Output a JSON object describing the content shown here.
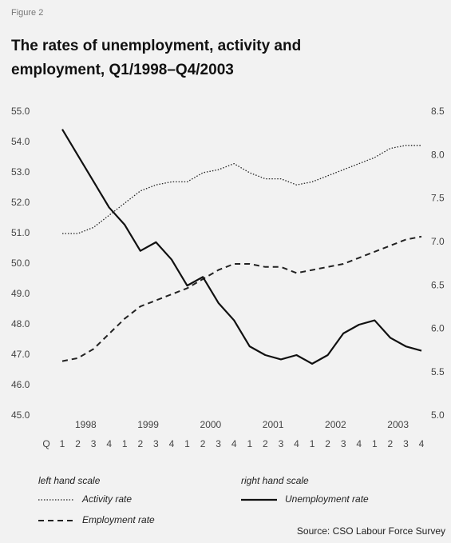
{
  "chart_data": {
    "type": "line",
    "figure_label": "Figure 2",
    "title": [
      "The rates of unemployment, activity and",
      "employment, Q1/1998–Q4/2003"
    ],
    "quarter_axis_label": "Q",
    "categories": [
      "1",
      "2",
      "3",
      "4",
      "1",
      "2",
      "3",
      "4",
      "1",
      "2",
      "3",
      "4",
      "1",
      "2",
      "3",
      "4",
      "1",
      "2",
      "3",
      "4",
      "1",
      "2",
      "3",
      "4"
    ],
    "years": [
      "1998",
      "1999",
      "2000",
      "2001",
      "2002",
      "2003"
    ],
    "ylim": [
      45,
      55
    ],
    "yticks": [
      {
        "value": 45,
        "label": "45.0"
      },
      {
        "value": 46,
        "label": "46.0"
      },
      {
        "value": 47,
        "label": "47.0"
      },
      {
        "value": 48,
        "label": "48.0"
      },
      {
        "value": 49,
        "label": "49.0"
      },
      {
        "value": 50,
        "label": "50.0"
      },
      {
        "value": 51,
        "label": "51.0"
      },
      {
        "value": 52,
        "label": "52.0"
      },
      {
        "value": 53,
        "label": "53.0"
      },
      {
        "value": 54,
        "label": "54.0"
      },
      {
        "value": 55,
        "label": "55.0"
      }
    ],
    "y2lim": [
      5,
      8.5
    ],
    "y2ticks": [
      {
        "value": 5,
        "label": "5.0"
      },
      5.5,
      {
        "value": 6,
        "label": "6.0"
      },
      6.5,
      {
        "value": 7,
        "label": "7.0"
      },
      7.5,
      {
        "value": 8,
        "label": "8.0"
      },
      8.5
    ],
    "series": [
      {
        "name": "Activity rate",
        "color": "#222222",
        "style": "dotted",
        "axis": "y",
        "values": [
          51.0,
          51.0,
          51.2,
          51.6,
          52.0,
          52.4,
          52.6,
          52.7,
          52.7,
          53.0,
          53.1,
          53.3,
          53.0,
          52.8,
          52.8,
          52.6,
          52.7,
          52.9,
          53.1,
          53.3,
          53.5,
          53.8,
          53.9,
          53.9
        ]
      },
      {
        "name": "Employment rate",
        "color": "#222222",
        "style": "dashed",
        "axis": "y",
        "values": [
          46.8,
          46.9,
          47.2,
          47.7,
          48.2,
          48.6,
          48.8,
          49.0,
          49.2,
          49.5,
          49.8,
          50.0,
          50.0,
          49.9,
          49.9,
          49.7,
          49.8,
          49.9,
          50.0,
          50.2,
          50.4,
          50.6,
          50.8,
          50.9
        ]
      },
      {
        "name": "Unemployment rate",
        "color": "#111111",
        "style": "solid",
        "axis": "y2",
        "values": [
          8.3,
          8.0,
          7.7,
          7.4,
          7.2,
          6.9,
          7.0,
          6.8,
          6.5,
          6.6,
          6.3,
          6.1,
          5.8,
          5.7,
          5.65,
          5.7,
          5.6,
          5.7,
          5.95,
          6.05,
          6.1,
          5.9,
          5.8,
          5.75
        ]
      }
    ],
    "legend_left_title": "left hand scale",
    "legend_right_title": "right hand scale",
    "source": "Source: CSO Labour Force Survey"
  }
}
